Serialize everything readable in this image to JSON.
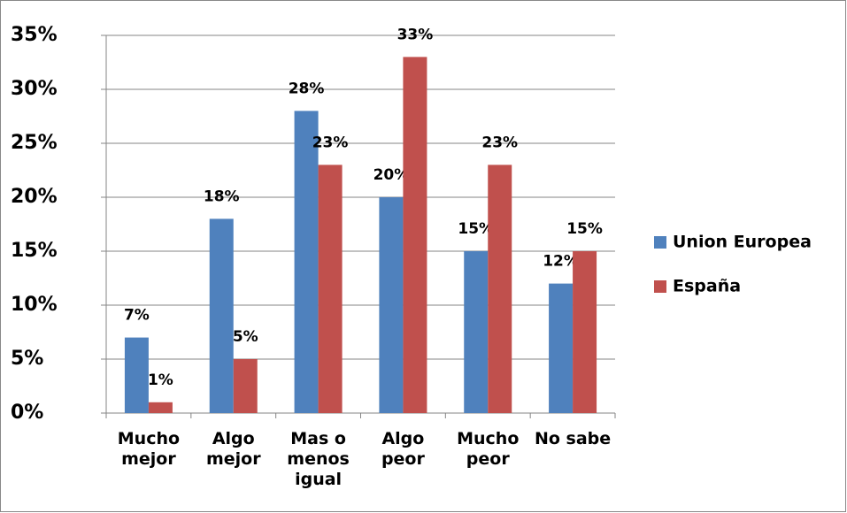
{
  "chart_data": {
    "type": "bar",
    "categories": [
      "Mucho mejor",
      "Algo mejor",
      "Mas o menos igual",
      "Algo peor",
      "Mucho peor",
      "No sabe"
    ],
    "series": [
      {
        "name": "Union Europea",
        "color": "#4f81bd",
        "values": [
          7,
          18,
          28,
          20,
          15,
          12
        ],
        "value_labels": [
          "7%",
          "18%",
          "28%",
          "20%",
          "15%",
          "12%"
        ]
      },
      {
        "name": "España",
        "color": "#c0504d",
        "values": [
          1,
          5,
          23,
          33,
          23,
          15
        ],
        "value_labels": [
          "1%",
          "5%",
          "23%",
          "33%",
          "23%",
          "15%"
        ]
      }
    ],
    "ylim": [
      0,
      35
    ],
    "yticks": [
      {
        "value": 0,
        "label": "0%"
      },
      {
        "value": 5,
        "label": "5%"
      },
      {
        "value": 10,
        "label": "10%"
      },
      {
        "value": 15,
        "label": "15%"
      },
      {
        "value": 20,
        "label": "20%"
      },
      {
        "value": 25,
        "label": "25%"
      },
      {
        "value": 30,
        "label": "30%"
      },
      {
        "value": 35,
        "label": "35%"
      }
    ],
    "grid": true,
    "legend": "right"
  }
}
